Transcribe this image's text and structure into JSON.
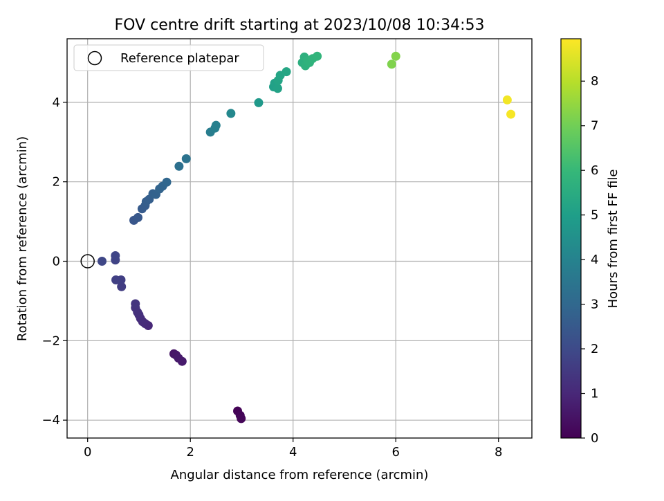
{
  "chart_data": {
    "type": "scatter",
    "title": "FOV centre drift starting at 2023/10/08 10:34:53",
    "xlabel": "Angular distance from reference (arcmin)",
    "ylabel": "Rotation from reference (arcmin)",
    "xlim": [
      -0.4,
      8.65
    ],
    "ylim": [
      -4.45,
      5.6
    ],
    "xticks": [
      0,
      2,
      4,
      6,
      8
    ],
    "yticks": [
      -4,
      -2,
      0,
      2,
      4
    ],
    "xtick_labels": [
      "0",
      "2",
      "4",
      "6",
      "8"
    ],
    "ytick_labels": [
      "−4",
      "−2",
      "0",
      "2",
      "4"
    ],
    "grid": true,
    "legend": {
      "position": "top-left",
      "label": "Reference platepar"
    },
    "reference_point": {
      "x": 0,
      "y": 0
    },
    "colorbar": {
      "label": "Hours from first FF file",
      "range": [
        0,
        8.95
      ],
      "ticks": [
        0,
        1,
        2,
        3,
        4,
        5,
        6,
        7,
        8
      ],
      "tick_labels": [
        "0",
        "1",
        "2",
        "3",
        "4",
        "5",
        "6",
        "7",
        "8"
      ],
      "colormap": "viridis"
    },
    "points": [
      {
        "x": 2.92,
        "y": -3.77,
        "h": 0.05
      },
      {
        "x": 2.97,
        "y": -3.88,
        "h": 0.1
      },
      {
        "x": 2.99,
        "y": -3.96,
        "h": 0.15
      },
      {
        "x": 1.68,
        "y": -2.33,
        "h": 0.5
      },
      {
        "x": 1.72,
        "y": -2.36,
        "h": 0.55
      },
      {
        "x": 1.77,
        "y": -2.44,
        "h": 0.6
      },
      {
        "x": 1.84,
        "y": -2.52,
        "h": 0.65
      },
      {
        "x": 1.18,
        "y": -1.62,
        "h": 1.0
      },
      {
        "x": 1.12,
        "y": -1.57,
        "h": 1.05
      },
      {
        "x": 1.07,
        "y": -1.52,
        "h": 1.1
      },
      {
        "x": 1.03,
        "y": -1.44,
        "h": 1.15
      },
      {
        "x": 1.0,
        "y": -1.35,
        "h": 1.2
      },
      {
        "x": 0.97,
        "y": -1.28,
        "h": 1.25
      },
      {
        "x": 0.93,
        "y": -1.17,
        "h": 1.3
      },
      {
        "x": 0.93,
        "y": -1.07,
        "h": 1.35
      },
      {
        "x": 0.66,
        "y": -0.64,
        "h": 1.6
      },
      {
        "x": 0.65,
        "y": -0.47,
        "h": 1.65
      },
      {
        "x": 0.55,
        "y": -0.47,
        "h": 1.7
      },
      {
        "x": 0.54,
        "y": 0.03,
        "h": 1.8
      },
      {
        "x": 0.54,
        "y": 0.14,
        "h": 1.85
      },
      {
        "x": 0.28,
        "y": 0.0,
        "h": 1.9
      },
      {
        "x": 0.9,
        "y": 1.03,
        "h": 2.4
      },
      {
        "x": 0.98,
        "y": 1.1,
        "h": 2.45
      },
      {
        "x": 1.06,
        "y": 1.32,
        "h": 2.55
      },
      {
        "x": 1.12,
        "y": 1.4,
        "h": 2.6
      },
      {
        "x": 1.14,
        "y": 1.5,
        "h": 2.65
      },
      {
        "x": 1.2,
        "y": 1.56,
        "h": 2.7
      },
      {
        "x": 1.27,
        "y": 1.7,
        "h": 2.75
      },
      {
        "x": 1.33,
        "y": 1.68,
        "h": 2.8
      },
      {
        "x": 1.4,
        "y": 1.82,
        "h": 2.85
      },
      {
        "x": 1.46,
        "y": 1.89,
        "h": 2.9
      },
      {
        "x": 1.54,
        "y": 1.99,
        "h": 2.95
      },
      {
        "x": 1.78,
        "y": 2.39,
        "h": 3.3
      },
      {
        "x": 1.92,
        "y": 2.58,
        "h": 3.4
      },
      {
        "x": 2.39,
        "y": 3.25,
        "h": 3.8
      },
      {
        "x": 2.48,
        "y": 3.35,
        "h": 3.85
      },
      {
        "x": 2.5,
        "y": 3.42,
        "h": 3.9
      },
      {
        "x": 2.79,
        "y": 3.72,
        "h": 4.2
      },
      {
        "x": 3.33,
        "y": 3.99,
        "h": 4.8
      },
      {
        "x": 3.62,
        "y": 4.39,
        "h": 5.05
      },
      {
        "x": 3.64,
        "y": 4.48,
        "h": 5.1
      },
      {
        "x": 3.7,
        "y": 4.35,
        "h": 5.15
      },
      {
        "x": 3.71,
        "y": 4.55,
        "h": 5.2
      },
      {
        "x": 3.75,
        "y": 4.68,
        "h": 5.25
      },
      {
        "x": 3.87,
        "y": 4.77,
        "h": 5.3
      },
      {
        "x": 4.18,
        "y": 5.0,
        "h": 5.6
      },
      {
        "x": 4.22,
        "y": 5.14,
        "h": 5.65
      },
      {
        "x": 4.24,
        "y": 4.92,
        "h": 5.7
      },
      {
        "x": 4.28,
        "y": 5.05,
        "h": 5.72
      },
      {
        "x": 4.32,
        "y": 5.0,
        "h": 5.75
      },
      {
        "x": 4.38,
        "y": 5.1,
        "h": 5.8
      },
      {
        "x": 4.47,
        "y": 5.16,
        "h": 5.85
      },
      {
        "x": 5.92,
        "y": 4.96,
        "h": 7.2
      },
      {
        "x": 6.0,
        "y": 5.16,
        "h": 7.25
      },
      {
        "x": 8.17,
        "y": 4.06,
        "h": 8.8
      },
      {
        "x": 8.24,
        "y": 3.7,
        "h": 8.85
      }
    ]
  }
}
